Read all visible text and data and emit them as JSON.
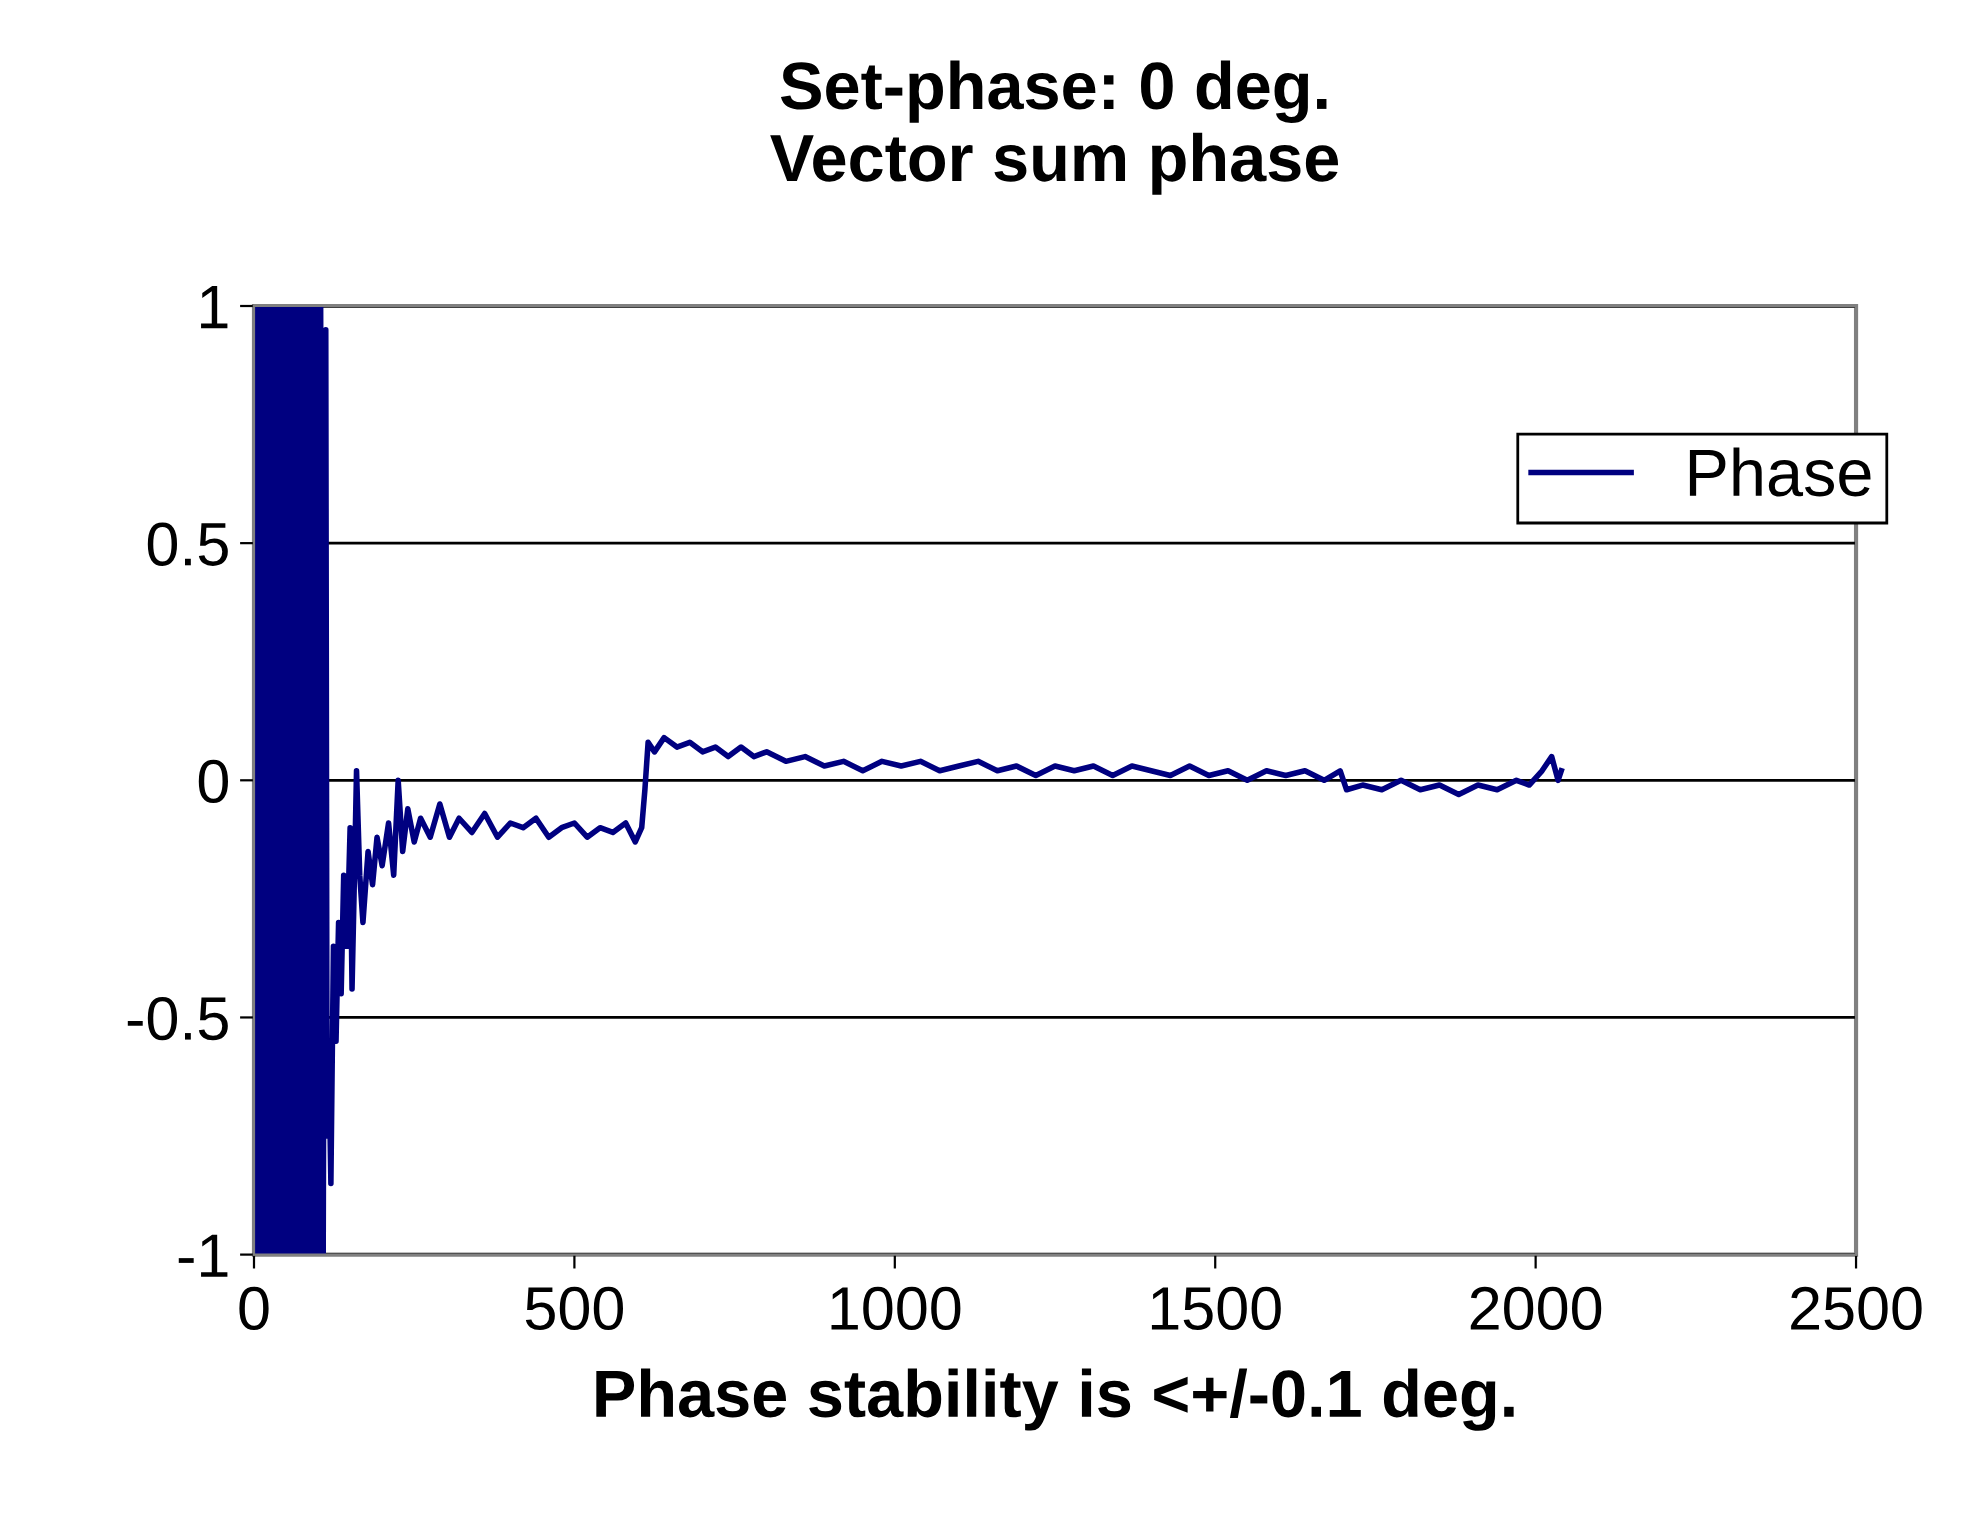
{
  "chart_data": {
    "type": "line",
    "title": "Set-phase: 0 deg.\nVector sum phase",
    "xlabel": "Phase stability is <+/-0.1 deg.",
    "xlim": [
      0,
      2500
    ],
    "xticks": [
      0,
      500,
      1000,
      1500,
      2000,
      2500
    ],
    "ylim": [
      -1,
      1
    ],
    "yticks": [
      -1,
      -0.5,
      0,
      0.5,
      1
    ],
    "grid": "y",
    "legend": "top right",
    "marker": "none",
    "line_style": "solid",
    "series": [
      {
        "name": "Phase",
        "color": "#000080",
        "x": [
          0,
          4,
          8,
          12,
          16,
          20,
          24,
          28,
          32,
          36,
          40,
          44,
          48,
          52,
          56,
          60,
          64,
          68,
          72,
          76,
          80,
          84,
          88,
          92,
          96,
          100,
          104,
          108,
          112,
          114,
          117,
          120,
          124,
          128,
          132,
          136,
          140,
          145,
          150,
          153,
          156,
          160,
          165,
          170,
          178,
          185,
          192,
          200,
          210,
          218,
          225,
          232,
          240,
          250,
          260,
          275,
          290,
          305,
          320,
          340,
          360,
          380,
          400,
          420,
          440,
          460,
          480,
          500,
          520,
          540,
          560,
          580,
          595,
          605,
          610,
          615,
          625,
          640,
          660,
          680,
          700,
          720,
          740,
          760,
          780,
          800,
          830,
          860,
          890,
          920,
          950,
          980,
          1010,
          1040,
          1070,
          1100,
          1130,
          1160,
          1190,
          1220,
          1250,
          1280,
          1310,
          1340,
          1370,
          1400,
          1430,
          1460,
          1490,
          1520,
          1550,
          1580,
          1610,
          1640,
          1670,
          1695,
          1705,
          1730,
          1760,
          1790,
          1820,
          1850,
          1880,
          1910,
          1940,
          1970,
          1990,
          2010,
          2025,
          2035,
          2040
        ],
        "values": [
          1,
          -1,
          1,
          -1,
          1,
          -1,
          1,
          -1,
          1,
          -1,
          1,
          -1,
          1,
          -1,
          1,
          -1,
          1,
          -1,
          1,
          -1,
          1,
          -1,
          1,
          -1,
          1,
          -1,
          1,
          -1,
          0.95,
          -0.75,
          -0.6,
          -0.85,
          -0.35,
          -0.55,
          -0.3,
          -0.45,
          -0.2,
          -0.35,
          -0.1,
          -0.44,
          -0.25,
          0.02,
          -0.2,
          -0.3,
          -0.15,
          -0.22,
          -0.12,
          -0.18,
          -0.09,
          -0.2,
          0.0,
          -0.15,
          -0.06,
          -0.13,
          -0.08,
          -0.12,
          -0.05,
          -0.12,
          -0.08,
          -0.11,
          -0.07,
          -0.12,
          -0.09,
          -0.1,
          -0.08,
          -0.12,
          -0.1,
          -0.09,
          -0.12,
          -0.1,
          -0.11,
          -0.09,
          -0.13,
          -0.1,
          -0.02,
          0.08,
          0.06,
          0.09,
          0.07,
          0.08,
          0.06,
          0.07,
          0.05,
          0.07,
          0.05,
          0.06,
          0.04,
          0.05,
          0.03,
          0.04,
          0.02,
          0.04,
          0.03,
          0.04,
          0.02,
          0.03,
          0.04,
          0.02,
          0.03,
          0.01,
          0.03,
          0.02,
          0.03,
          0.01,
          0.03,
          0.02,
          0.01,
          0.03,
          0.01,
          0.02,
          0.0,
          0.02,
          0.01,
          0.02,
          0.0,
          0.02,
          -0.02,
          -0.01,
          -0.02,
          0.0,
          -0.02,
          -0.01,
          -0.03,
          -0.01,
          -0.02,
          0.0,
          -0.01,
          0.02,
          0.05,
          0.0,
          0.02
        ]
      }
    ]
  }
}
